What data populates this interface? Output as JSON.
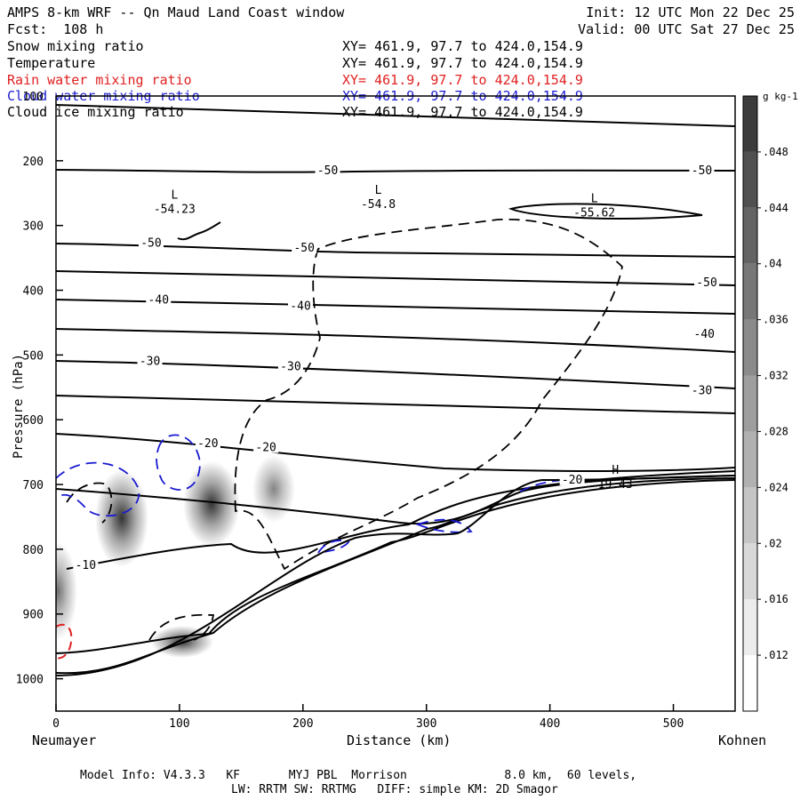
{
  "header": {
    "title": "AMPS 8-km WRF -- Qn Maud Land Coast window",
    "init": "Init: 12 UTC Mon 22 Dec 25",
    "fcst": "Fcst:  108 h",
    "valid": "Valid: 00 UTC Sat 27 Dec 25"
  },
  "fields": [
    {
      "name": "Snow mixing ratio",
      "xy": "XY= 461.9, 97.7 to 424.0,154.9",
      "color": "#000000"
    },
    {
      "name": "Temperature",
      "xy": "XY= 461.9, 97.7 to 424.0,154.9",
      "color": "#000000"
    },
    {
      "name": "Rain water mixing ratio",
      "xy": "XY= 461.9, 97.7 to 424.0,154.9",
      "color": "#e02020"
    },
    {
      "name": "Cloud water mixing ratio",
      "xy": "XY= 461.9, 97.7 to 424.0,154.9",
      "color": "#1a1ad0"
    },
    {
      "name": "Cloud ice mixing ratio",
      "xy": "XY= 461.9, 97.7 to 424.0,154.9",
      "color": "#000000"
    }
  ],
  "footer": {
    "model_info": "Model Info: V4.3.3   KF       MYJ PBL  Morrison              8.0 km,  60 levels,",
    "physics": "LW: RRTM SW: RRTMG   DIFF: simple KM: 2D Smagor"
  },
  "chart_data": {
    "type": "contour",
    "xlabel": "Distance (km)",
    "ylabel": "Pressure (hPa)",
    "xlim": [
      0,
      550
    ],
    "ylim": [
      1050,
      100
    ],
    "x_ticks": [
      0,
      100,
      200,
      300,
      400,
      500
    ],
    "y_ticks": [
      100,
      200,
      300,
      400,
      500,
      600,
      700,
      800,
      900,
      1000
    ],
    "left_endpoint": "Neumayer",
    "right_endpoint": "Kohnen",
    "colorbar": {
      "unit": "g kg-1",
      "ticks": [
        ".012",
        ".016",
        ".02",
        ".024",
        ".028",
        ".032",
        ".036",
        ".04",
        ".044",
        ".048"
      ],
      "min": 0.008,
      "max": 0.052
    },
    "temperature_labels": [
      {
        "text": "-50",
        "x": 220,
        "p": 215
      },
      {
        "text": "-50",
        "x": 523,
        "p": 215
      },
      {
        "text": "-50",
        "x": 77,
        "p": 327
      },
      {
        "text": "-50",
        "x": 201,
        "p": 335
      },
      {
        "text": "-50",
        "x": 527,
        "p": 388
      },
      {
        "text": "-40",
        "x": 83,
        "p": 415
      },
      {
        "text": "-40",
        "x": 198,
        "p": 425
      },
      {
        "text": "-40",
        "x": 525,
        "p": 468
      },
      {
        "text": "-30",
        "x": 76,
        "p": 510
      },
      {
        "text": "-30",
        "x": 190,
        "p": 518
      },
      {
        "text": "-30",
        "x": 523,
        "p": 555
      },
      {
        "text": "-20",
        "x": 123,
        "p": 637
      },
      {
        "text": "-20",
        "x": 170,
        "p": 643
      },
      {
        "text": "-20",
        "x": 418,
        "p": 693
      },
      {
        "text": "-10",
        "x": 24,
        "p": 825
      }
    ],
    "extrema": [
      {
        "type": "L",
        "value": "-54.23",
        "x": 96,
        "p": 278
      },
      {
        "type": "L",
        "value": "-54.8",
        "x": 261,
        "p": 270
      },
      {
        "type": "L",
        "value": "-55.62",
        "x": 436,
        "p": 283
      },
      {
        "type": "H",
        "value": "19.43",
        "x": 453,
        "p": 703
      }
    ]
  }
}
